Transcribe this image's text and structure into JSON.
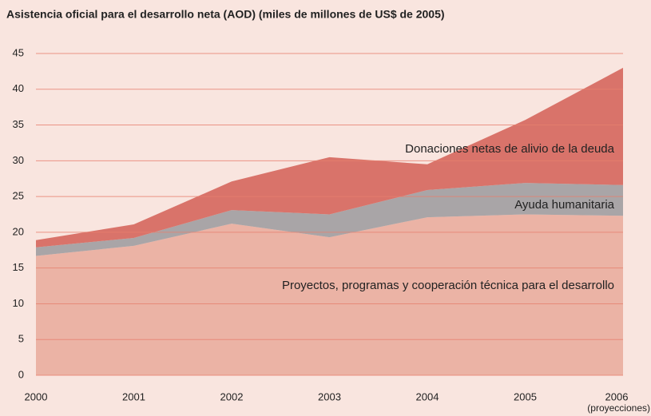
{
  "chart_data": {
    "type": "stacked_area",
    "title": "Asistencia oficial para el desarrollo neta (AOD) (miles de millones de US$ de 2005)",
    "categories": [
      "2000",
      "2001",
      "2002",
      "2003",
      "2004",
      "2005",
      "2006"
    ],
    "category_note": "(proyecciones)",
    "series": [
      {
        "name": "Proyectos, programas y cooperación técnica para el desarrollo",
        "color": "#ebb3a5",
        "values": [
          16.7,
          18.1,
          21.2,
          19.3,
          22.1,
          22.5,
          22.3
        ]
      },
      {
        "name": "Ayuda humanitaria",
        "color": "#a9a5a7",
        "values": [
          1.2,
          1.1,
          1.9,
          3.2,
          3.8,
          4.4,
          4.3
        ]
      },
      {
        "name": "Donaciones netas de alivio de la deuda",
        "color": "#d9736a",
        "values": [
          1.0,
          1.9,
          4.0,
          8.0,
          3.6,
          8.8,
          16.4
        ]
      }
    ],
    "ylim": [
      0,
      45
    ],
    "yticks": [
      0,
      5,
      10,
      15,
      20,
      25,
      30,
      35,
      40,
      45
    ],
    "grid": true
  }
}
